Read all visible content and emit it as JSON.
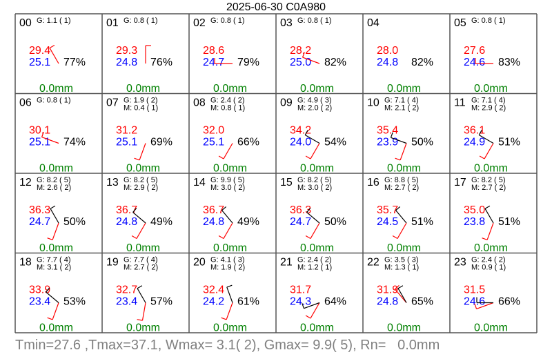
{
  "chart_data": {
    "type": "table",
    "title": "2025-06-30 C0A980",
    "colors": {
      "temperature": "#ff0000",
      "dewpoint": "#0000ff",
      "rain": "#008000",
      "text": "#000000",
      "footer": "#808080",
      "grid": "#555555"
    },
    "hours": [
      {
        "label": "00",
        "gust": "G: 1.1 ( 1)",
        "mean": "",
        "t": "29.4",
        "td": "25.1",
        "rh": "77%",
        "rain": "0.0mm",
        "barb_dirs": [
          330
        ]
      },
      {
        "label": "01",
        "gust": "G: 0.8 ( 1)",
        "mean": "",
        "t": "29.3",
        "td": "24.8",
        "rh": "76%",
        "rain": "0.0mm",
        "barb_dirs": [
          0
        ]
      },
      {
        "label": "02",
        "gust": "G: 0.8 ( 1)",
        "mean": "",
        "t": "28.6",
        "td": "24.7",
        "rh": "79%",
        "rain": "0.0mm",
        "barb_dirs": [
          270
        ]
      },
      {
        "label": "03",
        "gust": "G: 0.8 ( 1)",
        "mean": "",
        "t": "28.2",
        "td": "25.0",
        "rh": "82%",
        "rain": "0.0mm",
        "barb_dirs": [
          290
        ]
      },
      {
        "label": "04",
        "gust": "",
        "mean": "",
        "t": "28.0",
        "td": "24.8",
        "rh": "82%",
        "rain": "0.0mm",
        "barb_dirs": []
      },
      {
        "label": "05",
        "gust": "G: 0.8 ( 1)",
        "mean": "",
        "t": "27.6",
        "td": "24.6",
        "rh": "83%",
        "rain": "0.0mm",
        "barb_dirs": [
          270
        ]
      },
      {
        "label": "06",
        "gust": "G: 0.8 ( 1)",
        "mean": "",
        "t": "30.1",
        "td": "25.1",
        "rh": "74%",
        "rain": "0.0mm",
        "barb_dirs": [
          290
        ]
      },
      {
        "label": "07",
        "gust": "G: 1.9 ( 2)",
        "mean": "M: 0.4 ( 1)",
        "t": "31.2",
        "td": "25.1",
        "rh": "69%",
        "rain": "0.0mm",
        "barb_dirs": [
          200
        ]
      },
      {
        "label": "08",
        "gust": "G: 2.4 ( 2)",
        "mean": "M: 0.8 ( 1)",
        "t": "32.0",
        "td": "25.1",
        "rh": "66%",
        "rain": "0.0mm",
        "barb_dirs": [
          210
        ]
      },
      {
        "label": "09",
        "gust": "G: 4.9 ( 3)",
        "mean": "M: 2.0 ( 2)",
        "t": "34.2",
        "td": "24.0",
        "rh": "54%",
        "rain": "0.0mm",
        "barb_dirs": [
          210,
          300
        ]
      },
      {
        "label": "10",
        "gust": "G: 7.1 ( 4)",
        "mean": "M: 2.1 ( 2)",
        "t": "35.4",
        "td": "23.9",
        "rh": "50%",
        "rain": "0.0mm",
        "barb_dirs": [
          200,
          290
        ]
      },
      {
        "label": "11",
        "gust": "G: 7.1 ( 4)",
        "mean": "M: 2.9 ( 2)",
        "t": "36.1",
        "td": "24.9",
        "rh": "51%",
        "rain": "0.0mm",
        "barb_dirs": [
          210,
          300
        ]
      },
      {
        "label": "12",
        "gust": "G: 8.2 ( 5)",
        "mean": "M: 2.6 ( 2)",
        "t": "36.3",
        "td": "24.7",
        "rh": "50%",
        "rain": "0.0mm",
        "barb_dirs": [
          200,
          330
        ]
      },
      {
        "label": "13",
        "gust": "G: 8.2 ( 5)",
        "mean": "M: 2.9 ( 2)",
        "t": "36.7",
        "td": "24.8",
        "rh": "49%",
        "rain": "0.0mm",
        "barb_dirs": [
          210,
          310
        ]
      },
      {
        "label": "14",
        "gust": "G: 9.9 ( 5)",
        "mean": "M: 3.0 ( 2)",
        "t": "36.7",
        "td": "24.8",
        "rh": "49%",
        "rain": "0.0mm",
        "barb_dirs": [
          210,
          320
        ]
      },
      {
        "label": "15",
        "gust": "G: 8.2 ( 5)",
        "mean": "M: 3.0 ( 2)",
        "t": "36.3",
        "td": "24.7",
        "rh": "50%",
        "rain": "0.0mm",
        "barb_dirs": [
          210,
          310
        ]
      },
      {
        "label": "16",
        "gust": "G: 8.8 ( 5)",
        "mean": "M: 2.7 ( 2)",
        "t": "35.7",
        "td": "24.5",
        "rh": "51%",
        "rain": "0.0mm",
        "barb_dirs": [
          210,
          320
        ]
      },
      {
        "label": "17",
        "gust": "G: 8.2 ( 5)",
        "mean": "M: 2.7 ( 2)",
        "t": "35.0",
        "td": "23.8",
        "rh": "51%",
        "rain": "0.0mm",
        "barb_dirs": [
          200,
          330
        ]
      },
      {
        "label": "18",
        "gust": "G: 7.7 ( 4)",
        "mean": "M: 3.1 ( 2)",
        "t": "33.9",
        "td": "23.4",
        "rh": "53%",
        "rain": "0.0mm",
        "barb_dirs": [
          200,
          310
        ]
      },
      {
        "label": "19",
        "gust": "G: 7.7 ( 4)",
        "mean": "M: 2.7 ( 2)",
        "t": "32.7",
        "td": "23.4",
        "rh": "57%",
        "rain": "0.0mm",
        "barb_dirs": [
          190,
          330
        ]
      },
      {
        "label": "20",
        "gust": "G: 4.1 ( 3)",
        "mean": "M: 1.9 ( 2)",
        "t": "32.4",
        "td": "24.2",
        "rh": "61%",
        "rain": "0.0mm",
        "barb_dirs": [
          200,
          340
        ]
      },
      {
        "label": "21",
        "gust": "G: 2.4 ( 2)",
        "mean": "M: 1.2 ( 1)",
        "t": "31.7",
        "td": "24.3",
        "rh": "64%",
        "rain": "0.0mm",
        "barb_dirs": [
          210,
          250
        ]
      },
      {
        "label": "22",
        "gust": "G: 3.5 ( 3)",
        "mean": "M: 1.3 ( 1)",
        "t": "31.9",
        "td": "24.8",
        "rh": "65%",
        "rain": "0.0mm",
        "barb_dirs": [
          320,
          330
        ]
      },
      {
        "label": "23",
        "gust": "G: 2.4 ( 2)",
        "mean": "M: 0.9 ( 1)",
        "t": "31.5",
        "td": "24.6",
        "rh": "66%",
        "rain": "0.0mm",
        "barb_dirs": [
          250,
          270
        ]
      }
    ],
    "summary": "Tmin=27.6 ,Tmax=37.1, Wmax= 3.1( 2), Gmax= 9.9( 5), Rn=   0.0mm"
  }
}
